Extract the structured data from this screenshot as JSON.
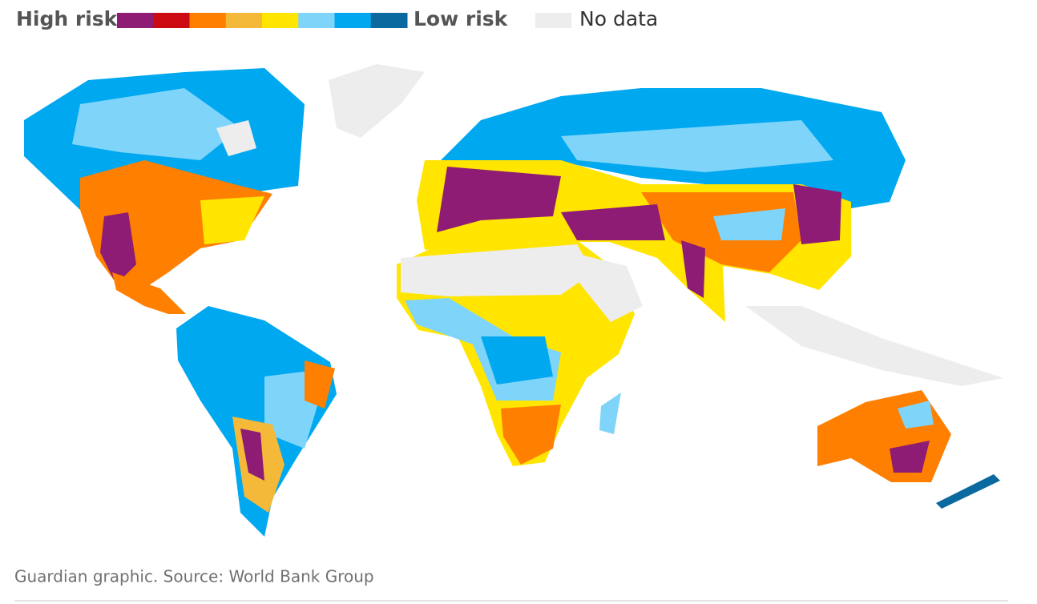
{
  "legend": {
    "high_label": "High risk",
    "low_label": "Low risk",
    "no_data_label": "No data",
    "colors": [
      "#8e1b74",
      "#cc0a11",
      "#ff7f00",
      "#f5b93a",
      "#ffe500",
      "#7fd4f9",
      "#00a8f0",
      "#0a6aa0"
    ],
    "no_data_color": "#ededed"
  },
  "footer": {
    "source": "Guardian graphic. Source: World Bank Group"
  }
}
